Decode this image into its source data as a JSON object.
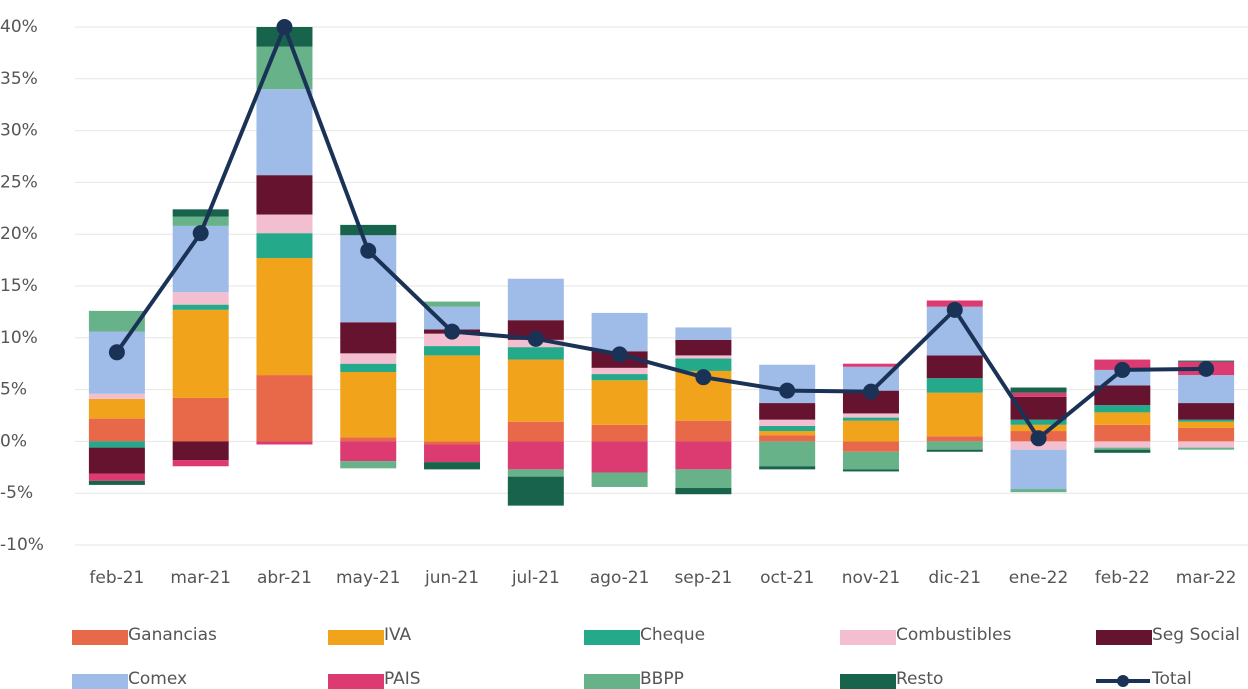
{
  "chart_data": {
    "type": "bar",
    "stacked": true,
    "categories": [
      "feb-21",
      "mar-21",
      "abr-21",
      "may-21",
      "jun-21",
      "jul-21",
      "ago-21",
      "sep-21",
      "oct-21",
      "nov-21",
      "dic-21",
      "ene-22",
      "feb-22",
      "mar-22"
    ],
    "ylim": [
      -10,
      40
    ],
    "yticks": [
      {
        "value": -10,
        "label": "-10%"
      },
      {
        "value": -5,
        "label": "-5%"
      },
      {
        "value": 0,
        "label": "0%"
      },
      {
        "value": 5,
        "label": "5%"
      },
      {
        "value": 10,
        "label": "10%"
      },
      {
        "value": 15,
        "label": "15%"
      },
      {
        "value": 20,
        "label": "20%"
      },
      {
        "value": 25,
        "label": "25%"
      },
      {
        "value": 30,
        "label": "30%"
      },
      {
        "value": 35,
        "label": "35%"
      },
      {
        "value": 40,
        "label": "40%"
      }
    ],
    "grid": true,
    "legend": "bottom",
    "series": [
      {
        "name": "Ganancias",
        "color": "#e8684a",
        "values": [
          2.2,
          4.2,
          6.4,
          0.4,
          -0.3,
          1.9,
          1.6,
          2.0,
          0.6,
          -1.0,
          0.5,
          1.0,
          1.6,
          1.3
        ]
      },
      {
        "name": "IVA",
        "color": "#f0a31b",
        "values": [
          1.9,
          8.5,
          11.3,
          6.3,
          8.3,
          6.0,
          4.3,
          4.8,
          0.4,
          2.0,
          4.2,
          0.6,
          1.2,
          0.6
        ]
      },
      {
        "name": "Cheque",
        "color": "#25a98b",
        "values": [
          -0.6,
          0.5,
          2.4,
          0.8,
          0.9,
          1.2,
          0.6,
          1.2,
          0.5,
          0.3,
          1.4,
          0.5,
          0.7,
          0.2
        ]
      },
      {
        "name": "Combustibles",
        "color": "#f3bfd0",
        "values": [
          0.5,
          1.2,
          1.8,
          1.0,
          1.2,
          0.7,
          0.6,
          0.3,
          0.6,
          0.4,
          0,
          -0.8,
          -0.6,
          -0.6
        ]
      },
      {
        "name": "Seg Social",
        "color": "#661330",
        "values": [
          -2.5,
          -1.8,
          3.8,
          3.0,
          0.4,
          1.9,
          1.6,
          1.5,
          1.6,
          2.2,
          2.2,
          2.2,
          1.9,
          1.6
        ]
      },
      {
        "name": "Comex",
        "color": "#9fbbe8",
        "values": [
          6.0,
          6.4,
          8.3,
          8.4,
          2.2,
          4.0,
          3.7,
          1.2,
          3.7,
          2.3,
          4.7,
          -3.8,
          1.5,
          2.7
        ]
      },
      {
        "name": "PAIS",
        "color": "#dc3b72",
        "values": [
          -0.7,
          -0.6,
          -0.3,
          -1.9,
          -1.7,
          -2.7,
          -3.0,
          -2.7,
          0,
          0.3,
          0.6,
          0.4,
          1.0,
          1.3
        ]
      },
      {
        "name": "BBPP",
        "color": "#68b28a",
        "values": [
          2.0,
          0.9,
          4.1,
          -0.7,
          0.5,
          -0.7,
          -1.4,
          -1.8,
          -2.4,
          -1.7,
          -0.8,
          -0.3,
          -0.2,
          -0.2
        ]
      },
      {
        "name": "Resto",
        "color": "#17634c",
        "values": [
          -0.4,
          0.7,
          1.9,
          1.0,
          -0.7,
          -2.8,
          0,
          -0.6,
          -0.3,
          -0.2,
          -0.2,
          0.5,
          -0.3,
          0.1
        ]
      },
      {
        "name": "Total",
        "color": "#1b3257",
        "type": "line",
        "values": [
          8.6,
          20.1,
          40,
          18.4,
          10.6,
          9.9,
          8.4,
          6.2,
          4.9,
          4.8,
          12.7,
          0.3,
          6.9,
          7.0
        ]
      }
    ]
  }
}
